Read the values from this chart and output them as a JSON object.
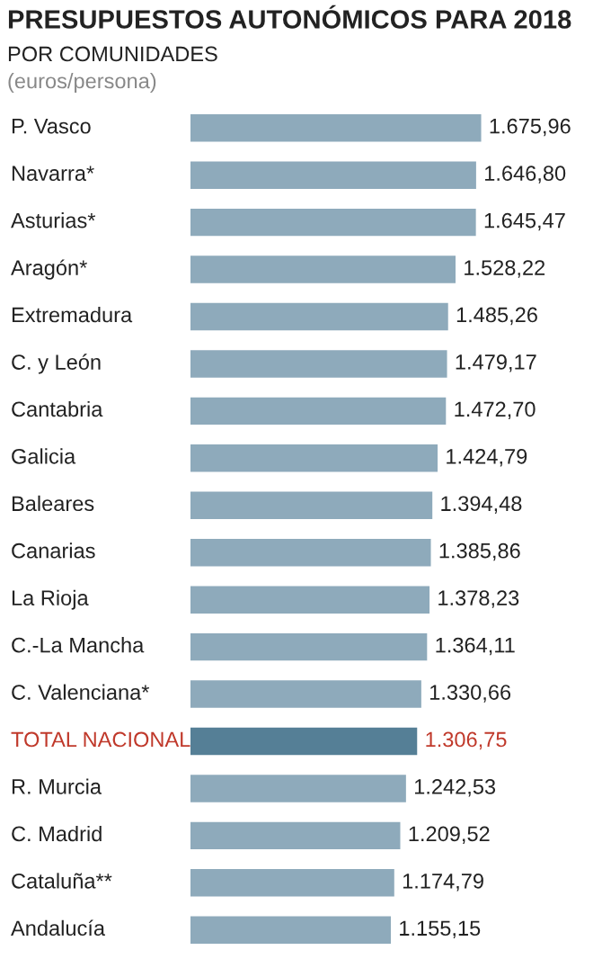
{
  "chart_data": {
    "type": "bar",
    "orientation": "horizontal",
    "title": "PRESUPUESTOS AUTONÓMICOS PARA 2018",
    "subtitle": "POR COMUNIDADES",
    "xlabel": "(euros/persona)",
    "categories": [
      "P. Vasco",
      "Navarra*",
      "Asturias*",
      "Aragón*",
      "Extremadura",
      "C. y León",
      "Cantabria",
      "Galicia",
      "Baleares",
      "Canarias",
      "La Rioja",
      "C.-La Mancha",
      "C. Valenciana*",
      "TOTAL NACIONAL",
      "R. Murcia",
      "C. Madrid",
      "Cataluña**",
      "Andalucía"
    ],
    "values": [
      1675.96,
      1646.8,
      1645.47,
      1528.22,
      1485.26,
      1479.17,
      1472.7,
      1424.79,
      1394.48,
      1385.86,
      1378.23,
      1364.11,
      1330.66,
      1306.75,
      1242.53,
      1209.52,
      1174.79,
      1155.15
    ],
    "value_labels": [
      "1.675,96",
      "1.646,80",
      "1.645,47",
      "1.528,22",
      "1.485,26",
      "1.479,17",
      "1.472,70",
      "1.424,79",
      "1.394,48",
      "1.385,86",
      "1.378,23",
      "1.364,11",
      "1.330,66",
      "1.306,75",
      "1.242,53",
      "1.209,52",
      "1.174,79",
      "1.155,15"
    ],
    "colors": [
      "#8eaabb",
      "#8eaabb",
      "#8eaabb",
      "#8eaabb",
      "#8eaabb",
      "#8eaabb",
      "#8eaabb",
      "#8eaabb",
      "#8eaabb",
      "#8eaabb",
      "#8eaabb",
      "#8eaabb",
      "#8eaabb",
      "#557f96",
      "#8eaabb",
      "#8eaabb",
      "#8eaabb",
      "#8eaabb"
    ]
  }
}
